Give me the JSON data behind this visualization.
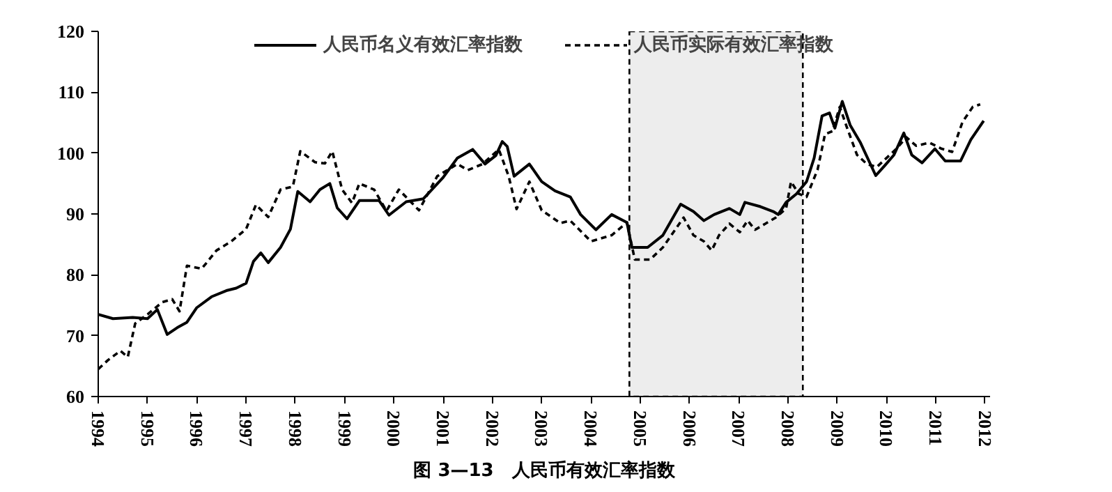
{
  "chart_data": {
    "type": "line",
    "title": "图 3—13　人民币有效汇率指数",
    "xlim": [
      1994,
      2012.1
    ],
    "ylim": [
      60,
      120
    ],
    "xticks": [
      1994,
      1995,
      1996,
      1997,
      1998,
      1999,
      2000,
      2001,
      2002,
      2003,
      2004,
      2005,
      2006,
      2007,
      2008,
      2009,
      2010,
      2011,
      2012
    ],
    "yticks": [
      60,
      70,
      80,
      90,
      100,
      110,
      120
    ],
    "grid": false,
    "legend": "top",
    "marker": "none",
    "bands": [
      {
        "axis": "x",
        "from": 2004.78,
        "to": 2008.3,
        "color": "#000000"
      }
    ],
    "series": [
      {
        "name": "人民币名义有效汇率指数",
        "color": "#000000",
        "line_style": "solid",
        "x": [
          1994.0,
          1994.3,
          1994.7,
          1995.0,
          1995.2,
          1995.4,
          1995.6,
          1995.8,
          1996.0,
          1996.3,
          1996.6,
          1996.8,
          1997.0,
          1997.15,
          1997.3,
          1997.45,
          1997.7,
          1997.9,
          1998.05,
          1998.3,
          1998.5,
          1998.7,
          1998.85,
          1999.05,
          1999.3,
          1999.7,
          1999.9,
          2000.25,
          2000.6,
          2001.0,
          2001.29,
          2001.6,
          2001.85,
          2002.07,
          2002.2,
          2002.3,
          2002.44,
          2002.75,
          2003.0,
          2003.27,
          2003.58,
          2003.79,
          2004.1,
          2004.42,
          2004.73,
          2004.83,
          2005.15,
          2005.46,
          2005.82,
          2006.08,
          2006.29,
          2006.5,
          2006.81,
          2007.02,
          2007.125,
          2007.44,
          2007.7,
          2007.8,
          2007.96,
          2008.17,
          2008.375,
          2008.53,
          2008.69,
          2008.84,
          2008.95,
          2009.1,
          2009.26,
          2009.47,
          2009.78,
          2009.99,
          2010.15,
          2010.35,
          2010.51,
          2010.72,
          2010.98,
          2011.19,
          2011.5,
          2011.71,
          2011.97
        ],
        "values": [
          73.5,
          72.8,
          73.0,
          72.8,
          74.3,
          70.2,
          71.3,
          72.2,
          74.6,
          76.4,
          77.4,
          77.8,
          78.6,
          82.2,
          83.6,
          82.0,
          84.5,
          87.5,
          93.7,
          92.0,
          94.0,
          95.0,
          91.0,
          89.2,
          92.2,
          92.2,
          89.8,
          92.0,
          92.5,
          96.0,
          99.2,
          100.6,
          98.2,
          99.6,
          101.9,
          101.1,
          96.2,
          98.2,
          95.3,
          93.8,
          92.8,
          89.9,
          87.4,
          89.9,
          88.6,
          84.5,
          84.5,
          86.5,
          91.6,
          90.4,
          88.9,
          89.9,
          90.9,
          89.9,
          91.9,
          91.2,
          90.4,
          89.9,
          91.9,
          93.3,
          95.3,
          99.2,
          106.1,
          106.6,
          104.1,
          108.5,
          104.6,
          101.7,
          96.3,
          98.2,
          99.7,
          103.3,
          99.7,
          98.4,
          100.7,
          98.7,
          98.7,
          102.2,
          105.3
        ]
      },
      {
        "name": "人民币实际有效汇率指数",
        "color": "#000000",
        "line_style": "dashed",
        "x": [
          1994.0,
          1994.2,
          1994.45,
          1994.6,
          1994.75,
          1995.0,
          1995.3,
          1995.5,
          1995.65,
          1995.8,
          1996.1,
          1996.4,
          1996.7,
          1997.0,
          1997.2,
          1997.45,
          1997.7,
          1997.95,
          1998.1,
          1998.4,
          1998.6,
          1998.75,
          1998.95,
          1999.15,
          1999.3,
          1999.6,
          1999.85,
          2000.1,
          2000.51,
          2000.88,
          2001.29,
          2001.5,
          2001.8,
          2002.13,
          2002.33,
          2002.49,
          2002.75,
          2003.0,
          2003.38,
          2003.58,
          2004.0,
          2004.42,
          2004.73,
          2004.89,
          2005.2,
          2005.46,
          2005.88,
          2006.08,
          2006.29,
          2006.45,
          2006.6,
          2006.81,
          2007.02,
          2007.18,
          2007.33,
          2007.54,
          2007.75,
          2007.96,
          2008.06,
          2008.22,
          2008.375,
          2008.6,
          2008.75,
          2008.9,
          2009.05,
          2009.2,
          2009.4,
          2009.6,
          2009.8,
          2010.0,
          2010.2,
          2010.4,
          2010.6,
          2010.87,
          2011.12,
          2011.33,
          2011.54,
          2011.75,
          2011.9
        ],
        "values": [
          64.5,
          66.0,
          67.5,
          66.5,
          72.0,
          73.5,
          75.5,
          76.0,
          74.0,
          81.5,
          81.0,
          84.0,
          85.5,
          87.5,
          91.5,
          89.5,
          94.0,
          94.5,
          100.3,
          98.5,
          98.3,
          100.3,
          94.0,
          91.8,
          95.0,
          94.0,
          90.5,
          94.0,
          90.6,
          96.2,
          98.2,
          97.2,
          98.2,
          100.6,
          96.2,
          90.8,
          95.3,
          90.6,
          88.5,
          88.9,
          85.5,
          86.5,
          88.6,
          82.5,
          82.5,
          84.5,
          89.4,
          86.5,
          85.5,
          84.0,
          86.5,
          88.4,
          87.0,
          88.9,
          87.4,
          88.4,
          89.4,
          90.9,
          95.3,
          93.3,
          92.8,
          97.3,
          103.1,
          103.6,
          107.6,
          104.1,
          99.7,
          98.2,
          97.7,
          99.2,
          100.7,
          102.6,
          101.2,
          101.7,
          100.7,
          100.2,
          105.1,
          107.6,
          108.0
        ]
      }
    ]
  }
}
